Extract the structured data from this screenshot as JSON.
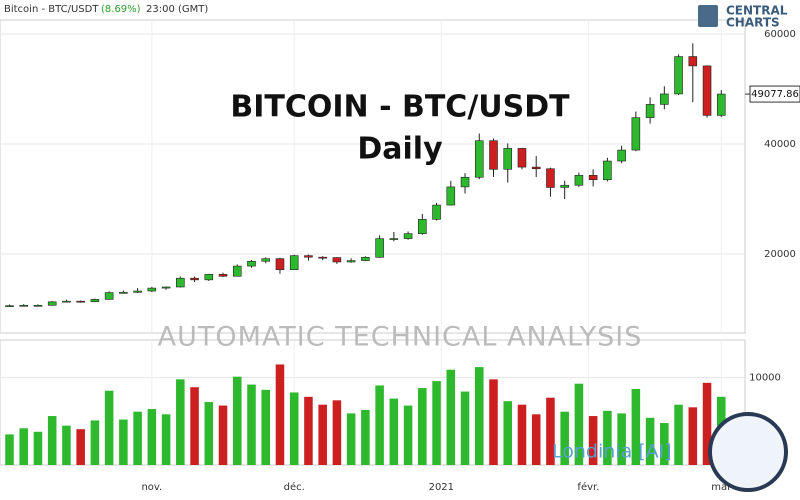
{
  "header": {
    "symbol": "Bitcoin - BTC/USDT",
    "change": "(8.69%)",
    "time": "23:00 (GMT)",
    "brand": [
      "CENTRAL",
      "CHARTS"
    ]
  },
  "watermark": "AUTOMATIC TECHNICAL ANALYSIS",
  "ai_label": "Londinia [AI]",
  "chart_data": {
    "type": "candlestick",
    "title": "BITCOIN - BTC/USDT",
    "subtitle": "Daily",
    "x": [
      1,
      4,
      7,
      10,
      13,
      16,
      19,
      22,
      25,
      28,
      31,
      34,
      37,
      40,
      43,
      46,
      49,
      52,
      55,
      58,
      61,
      64,
      67,
      70,
      73,
      76,
      79,
      82,
      85,
      88,
      91,
      94,
      97,
      100,
      103,
      106,
      109,
      112,
      115,
      118,
      121,
      124,
      127,
      130,
      133,
      136,
      139,
      142,
      145,
      148,
      151
    ],
    "open": [
      10550,
      10600,
      10670,
      10670,
      11300,
      11420,
      11320,
      11750,
      12990,
      13030,
      13270,
      13800,
      14000,
      15600,
      15300,
      16300,
      15950,
      17800,
      18680,
      19150,
      17150,
      19700,
      19420,
      19350,
      18550,
      18800,
      19400,
      22800,
      22800,
      23700,
      26300,
      28900,
      32200,
      33950,
      40600,
      35400,
      39200,
      35800,
      35500,
      32100,
      32500,
      34300,
      33500,
      36900,
      38900,
      44800,
      47200,
      49100,
      55900,
      54200,
      45200
    ],
    "high": [
      10800,
      10900,
      10850,
      11450,
      11700,
      11550,
      11900,
      13200,
      13350,
      13800,
      14000,
      14100,
      15900,
      15900,
      16400,
      16600,
      18100,
      18900,
      19400,
      19300,
      19850,
      19900,
      19600,
      19400,
      19200,
      19600,
      23400,
      24000,
      24100,
      27300,
      29300,
      33300,
      34700,
      41900,
      41000,
      40100,
      39300,
      37800,
      35700,
      33300,
      34800,
      35400,
      37500,
      39700,
      45900,
      48500,
      50500,
      56300,
      58300,
      54300,
      49800
    ],
    "low": [
      10400,
      10450,
      10500,
      10600,
      11200,
      11150,
      11250,
      11700,
      12800,
      12900,
      13100,
      13500,
      13900,
      14900,
      15100,
      15800,
      15900,
      17500,
      18300,
      16400,
      17100,
      18800,
      18900,
      18200,
      18400,
      18700,
      19300,
      22300,
      22600,
      23500,
      26100,
      28800,
      31000,
      33600,
      34000,
      33000,
      35400,
      34000,
      30400,
      30000,
      32200,
      32300,
      33200,
      36500,
      38700,
      43700,
      46300,
      48900,
      47600,
      44800,
      44900
    ],
    "close": [
      10600,
      10670,
      10670,
      11300,
      11420,
      11320,
      11750,
      12990,
      13030,
      13270,
      13800,
      14000,
      15600,
      15300,
      16300,
      15950,
      17800,
      18680,
      19150,
      17150,
      19700,
      19420,
      19350,
      18550,
      18800,
      19400,
      22800,
      22800,
      23700,
      26300,
      28900,
      32200,
      33950,
      40600,
      35400,
      39200,
      35800,
      35500,
      32100,
      32500,
      34300,
      33500,
      36900,
      38900,
      44800,
      47200,
      49100,
      55900,
      54200,
      45200,
      49077.86
    ],
    "volume": [
      3500,
      4200,
      3800,
      5600,
      4500,
      4100,
      5100,
      8500,
      5200,
      6100,
      6400,
      5800,
      9800,
      8900,
      7200,
      6800,
      10100,
      9200,
      8600,
      11500,
      8300,
      7800,
      6900,
      7400,
      5900,
      6300,
      9100,
      7600,
      6800,
      8800,
      9600,
      10900,
      8400,
      11200,
      9800,
      7300,
      6900,
      5800,
      7700,
      6100,
      9300,
      5600,
      6200,
      5900,
      8700,
      5400,
      4800,
      6900,
      6600,
      9400,
      7800
    ],
    "last_price": 49077.86,
    "xlim": [
      -1,
      156
    ],
    "xticks": [
      {
        "value": 31,
        "label": "nov."
      },
      {
        "value": 61,
        "label": "déc."
      },
      {
        "value": 92,
        "label": "2021"
      },
      {
        "value": 123,
        "label": "févr."
      },
      {
        "value": 151,
        "label": "mar"
      }
    ],
    "ylim": [
      5636,
      62545
    ],
    "yticks": [
      20000,
      40000,
      60000
    ],
    "volume_ylim": [
      0,
      14300
    ],
    "volume_yticks": [
      10000
    ],
    "up_color": "#2db82d",
    "down_color": "#cc1f1f",
    "grid": true
  }
}
